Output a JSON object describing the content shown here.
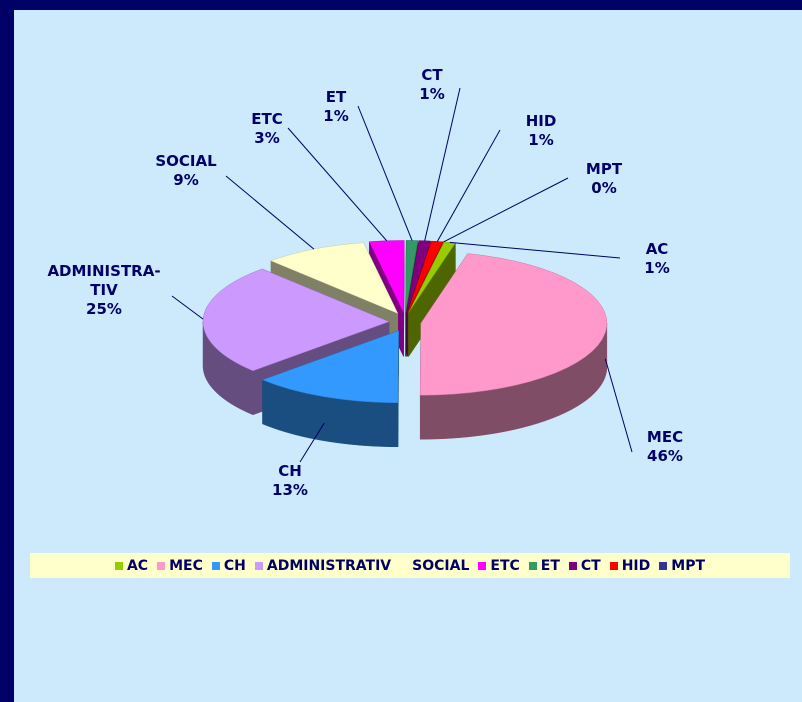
{
  "chart_data": {
    "type": "pie3d",
    "categories": [
      "AC",
      "MEC",
      "CH",
      "ADMINISTRATIV",
      "SOCIAL",
      "ETC",
      "ET",
      "CT",
      "HID",
      "MPT"
    ],
    "slice_labels": [
      "AC",
      "MEC",
      "CH",
      "ADMINISTRA-\nTIV",
      "SOCIAL",
      "ETC",
      "ET",
      "CT",
      "HID",
      "MPT"
    ],
    "values": [
      1,
      46,
      13,
      25,
      9,
      3,
      1,
      1,
      1,
      0
    ],
    "value_labels": [
      "1%",
      "46%",
      "13%",
      "25%",
      "9%",
      "3%",
      "1%",
      "1%",
      "1%",
      "0%"
    ],
    "colors": [
      "#99cc00",
      "#ff99cc",
      "#3399ff",
      "#cc99ff",
      "#ffffcc",
      "#ff00ff",
      "#339966",
      "#800080",
      "#ff0000",
      "#333399"
    ],
    "legend": "bottom"
  }
}
